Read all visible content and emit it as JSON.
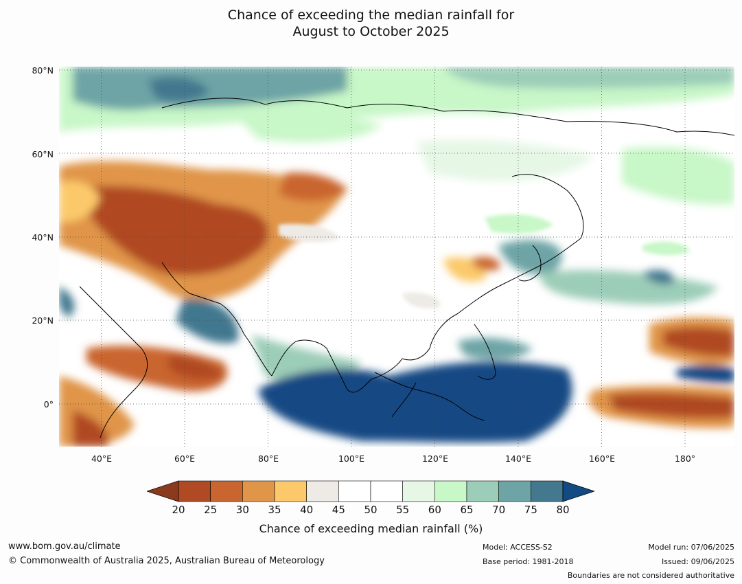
{
  "title": {
    "line1": "Chance of exceeding the median rainfall for",
    "line2": "August to October 2025"
  },
  "map": {
    "lat_labels": [
      "80°N",
      "60°N",
      "40°N",
      "20°N",
      "0°"
    ],
    "lon_labels": [
      "40°E",
      "60°E",
      "80°E",
      "100°E",
      "120°E",
      "140°E",
      "160°E",
      "180°"
    ]
  },
  "colorbar": {
    "ticks": [
      "20",
      "25",
      "30",
      "35",
      "40",
      "45",
      "50",
      "55",
      "60",
      "65",
      "70",
      "75",
      "80"
    ],
    "colors": [
      "#8c3a1e",
      "#b04a24",
      "#c9652f",
      "#e09548",
      "#fbc96a",
      "#eeebe6",
      "#ffffff",
      "#ffffff",
      "#e6f7e6",
      "#c8f7c8",
      "#9ccdb8",
      "#6ea4a6",
      "#43788f",
      "#124a84"
    ],
    "label": "Chance of exceeding median rainfall (%)"
  },
  "footer": {
    "website": "www.bom.gov.au/climate",
    "copyright": "© Commonwealth of Australia 2025, Australian Bureau of Meteorology",
    "model": "Model: ACCESS-S2",
    "base_period": "Base period: 1981-2018",
    "model_run": "Model run: 07/06/2025",
    "issued": "Issued: 09/06/2025",
    "boundaries_note": "Boundaries are not considered authoritative"
  }
}
